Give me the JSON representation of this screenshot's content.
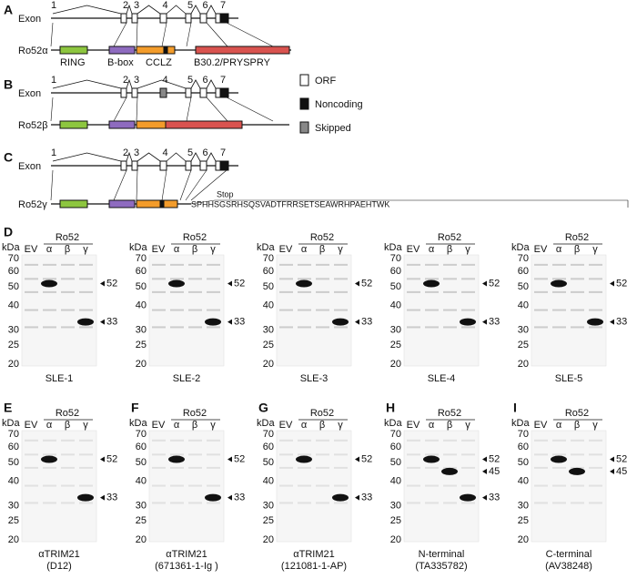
{
  "gene_panels": [
    {
      "letter": "A",
      "exon_label": "Exon",
      "exon_numbers": [
        "1",
        "2",
        "3",
        "4",
        "5",
        "6",
        "7"
      ],
      "isoform": "Ro52α",
      "domains": [
        "RING",
        "B-box",
        "CC",
        "LZ",
        "B30.2/PRYSPRY"
      ]
    },
    {
      "letter": "B",
      "exon_label": "Exon",
      "exon_numbers": [
        "1",
        "2",
        "3",
        "4",
        "5",
        "6",
        "7"
      ],
      "isoform": "Ro52β"
    },
    {
      "letter": "C",
      "exon_label": "Exon",
      "exon_numbers": [
        "1",
        "2",
        "3",
        "4",
        "5",
        "6",
        "7"
      ],
      "isoform": "Ro52γ",
      "stop_label": "Stop",
      "tail_sequence": "SPHHSGSRHSQSVADTFRRSETSEAWRHPAEHTWK"
    }
  ],
  "legend": [
    "ORF",
    "Noncoding",
    "Skipped"
  ],
  "blots": [
    {
      "letter": "D",
      "unit": "kDa",
      "lanes": [
        "EV",
        "α",
        "β",
        "γ"
      ],
      "group": "Ro52",
      "markers": [
        "70",
        "60",
        "50",
        "40",
        "30",
        "25",
        "20"
      ],
      "band_labels": [
        "52",
        "33"
      ],
      "caption": [
        "SLE-1"
      ]
    },
    {
      "unit": "kDa",
      "lanes": [
        "EV",
        "α",
        "β",
        "γ"
      ],
      "group": "Ro52",
      "markers": [
        "70",
        "60",
        "50",
        "40",
        "30",
        "25",
        "20"
      ],
      "band_labels": [
        "52",
        "33"
      ],
      "caption": [
        "SLE-2"
      ]
    },
    {
      "unit": "kDa",
      "lanes": [
        "EV",
        "α",
        "β",
        "γ"
      ],
      "group": "Ro52",
      "markers": [
        "70",
        "60",
        "50",
        "40",
        "30",
        "25",
        "20"
      ],
      "band_labels": [
        "52",
        "33"
      ],
      "caption": [
        "SLE-3"
      ]
    },
    {
      "unit": "kDa",
      "lanes": [
        "EV",
        "α",
        "β",
        "γ"
      ],
      "group": "Ro52",
      "markers": [
        "70",
        "60",
        "50",
        "40",
        "30",
        "25",
        "20"
      ],
      "band_labels": [
        "52",
        "33"
      ],
      "caption": [
        "SLE-4"
      ]
    },
    {
      "unit": "kDa",
      "lanes": [
        "EV",
        "α",
        "β",
        "γ"
      ],
      "group": "Ro52",
      "markers": [
        "70",
        "60",
        "50",
        "40",
        "30",
        "25",
        "20"
      ],
      "band_labels": [
        "52",
        "33"
      ],
      "caption": [
        "SLE-5"
      ]
    },
    {
      "letter": "E",
      "unit": "kDa",
      "lanes": [
        "EV",
        "α",
        "β",
        "γ"
      ],
      "group": "Ro52",
      "markers": [
        "70",
        "60",
        "50",
        "40",
        "30",
        "25",
        "20"
      ],
      "band_labels": [
        "52",
        "33"
      ],
      "caption": [
        "αTRIM21",
        "(D12)"
      ]
    },
    {
      "letter": "F",
      "unit": "kDa",
      "lanes": [
        "EV",
        "α",
        "β",
        "γ"
      ],
      "group": "Ro52",
      "markers": [
        "70",
        "60",
        "50",
        "40",
        "30",
        "25",
        "20"
      ],
      "band_labels": [
        "52",
        "33"
      ],
      "caption": [
        "αTRIM21",
        "(671361-1-Ig )"
      ]
    },
    {
      "letter": "G",
      "unit": "kDa",
      "lanes": [
        "EV",
        "α",
        "β",
        "γ"
      ],
      "group": "Ro52",
      "markers": [
        "70",
        "60",
        "50",
        "40",
        "30",
        "25",
        "20"
      ],
      "band_labels": [
        "52",
        "33"
      ],
      "caption": [
        "αTRIM21",
        "(121081-1-AP)"
      ]
    },
    {
      "letter": "H",
      "unit": "kDa",
      "lanes": [
        "EV",
        "α",
        "β",
        "γ"
      ],
      "group": "Ro52",
      "markers": [
        "70",
        "60",
        "50",
        "40",
        "30",
        "25",
        "20"
      ],
      "band_labels": [
        "52",
        "45",
        "33"
      ],
      "caption": [
        "N-terminal",
        "(TA335782)"
      ]
    },
    {
      "letter": "I",
      "unit": "kDa",
      "lanes": [
        "EV",
        "α",
        "β",
        "γ"
      ],
      "group": "Ro52",
      "markers": [
        "70",
        "60",
        "50",
        "40",
        "30",
        "25",
        "20"
      ],
      "band_labels": [
        "52",
        "45"
      ],
      "caption": [
        "C-terminal",
        "(AV38248)"
      ]
    }
  ]
}
